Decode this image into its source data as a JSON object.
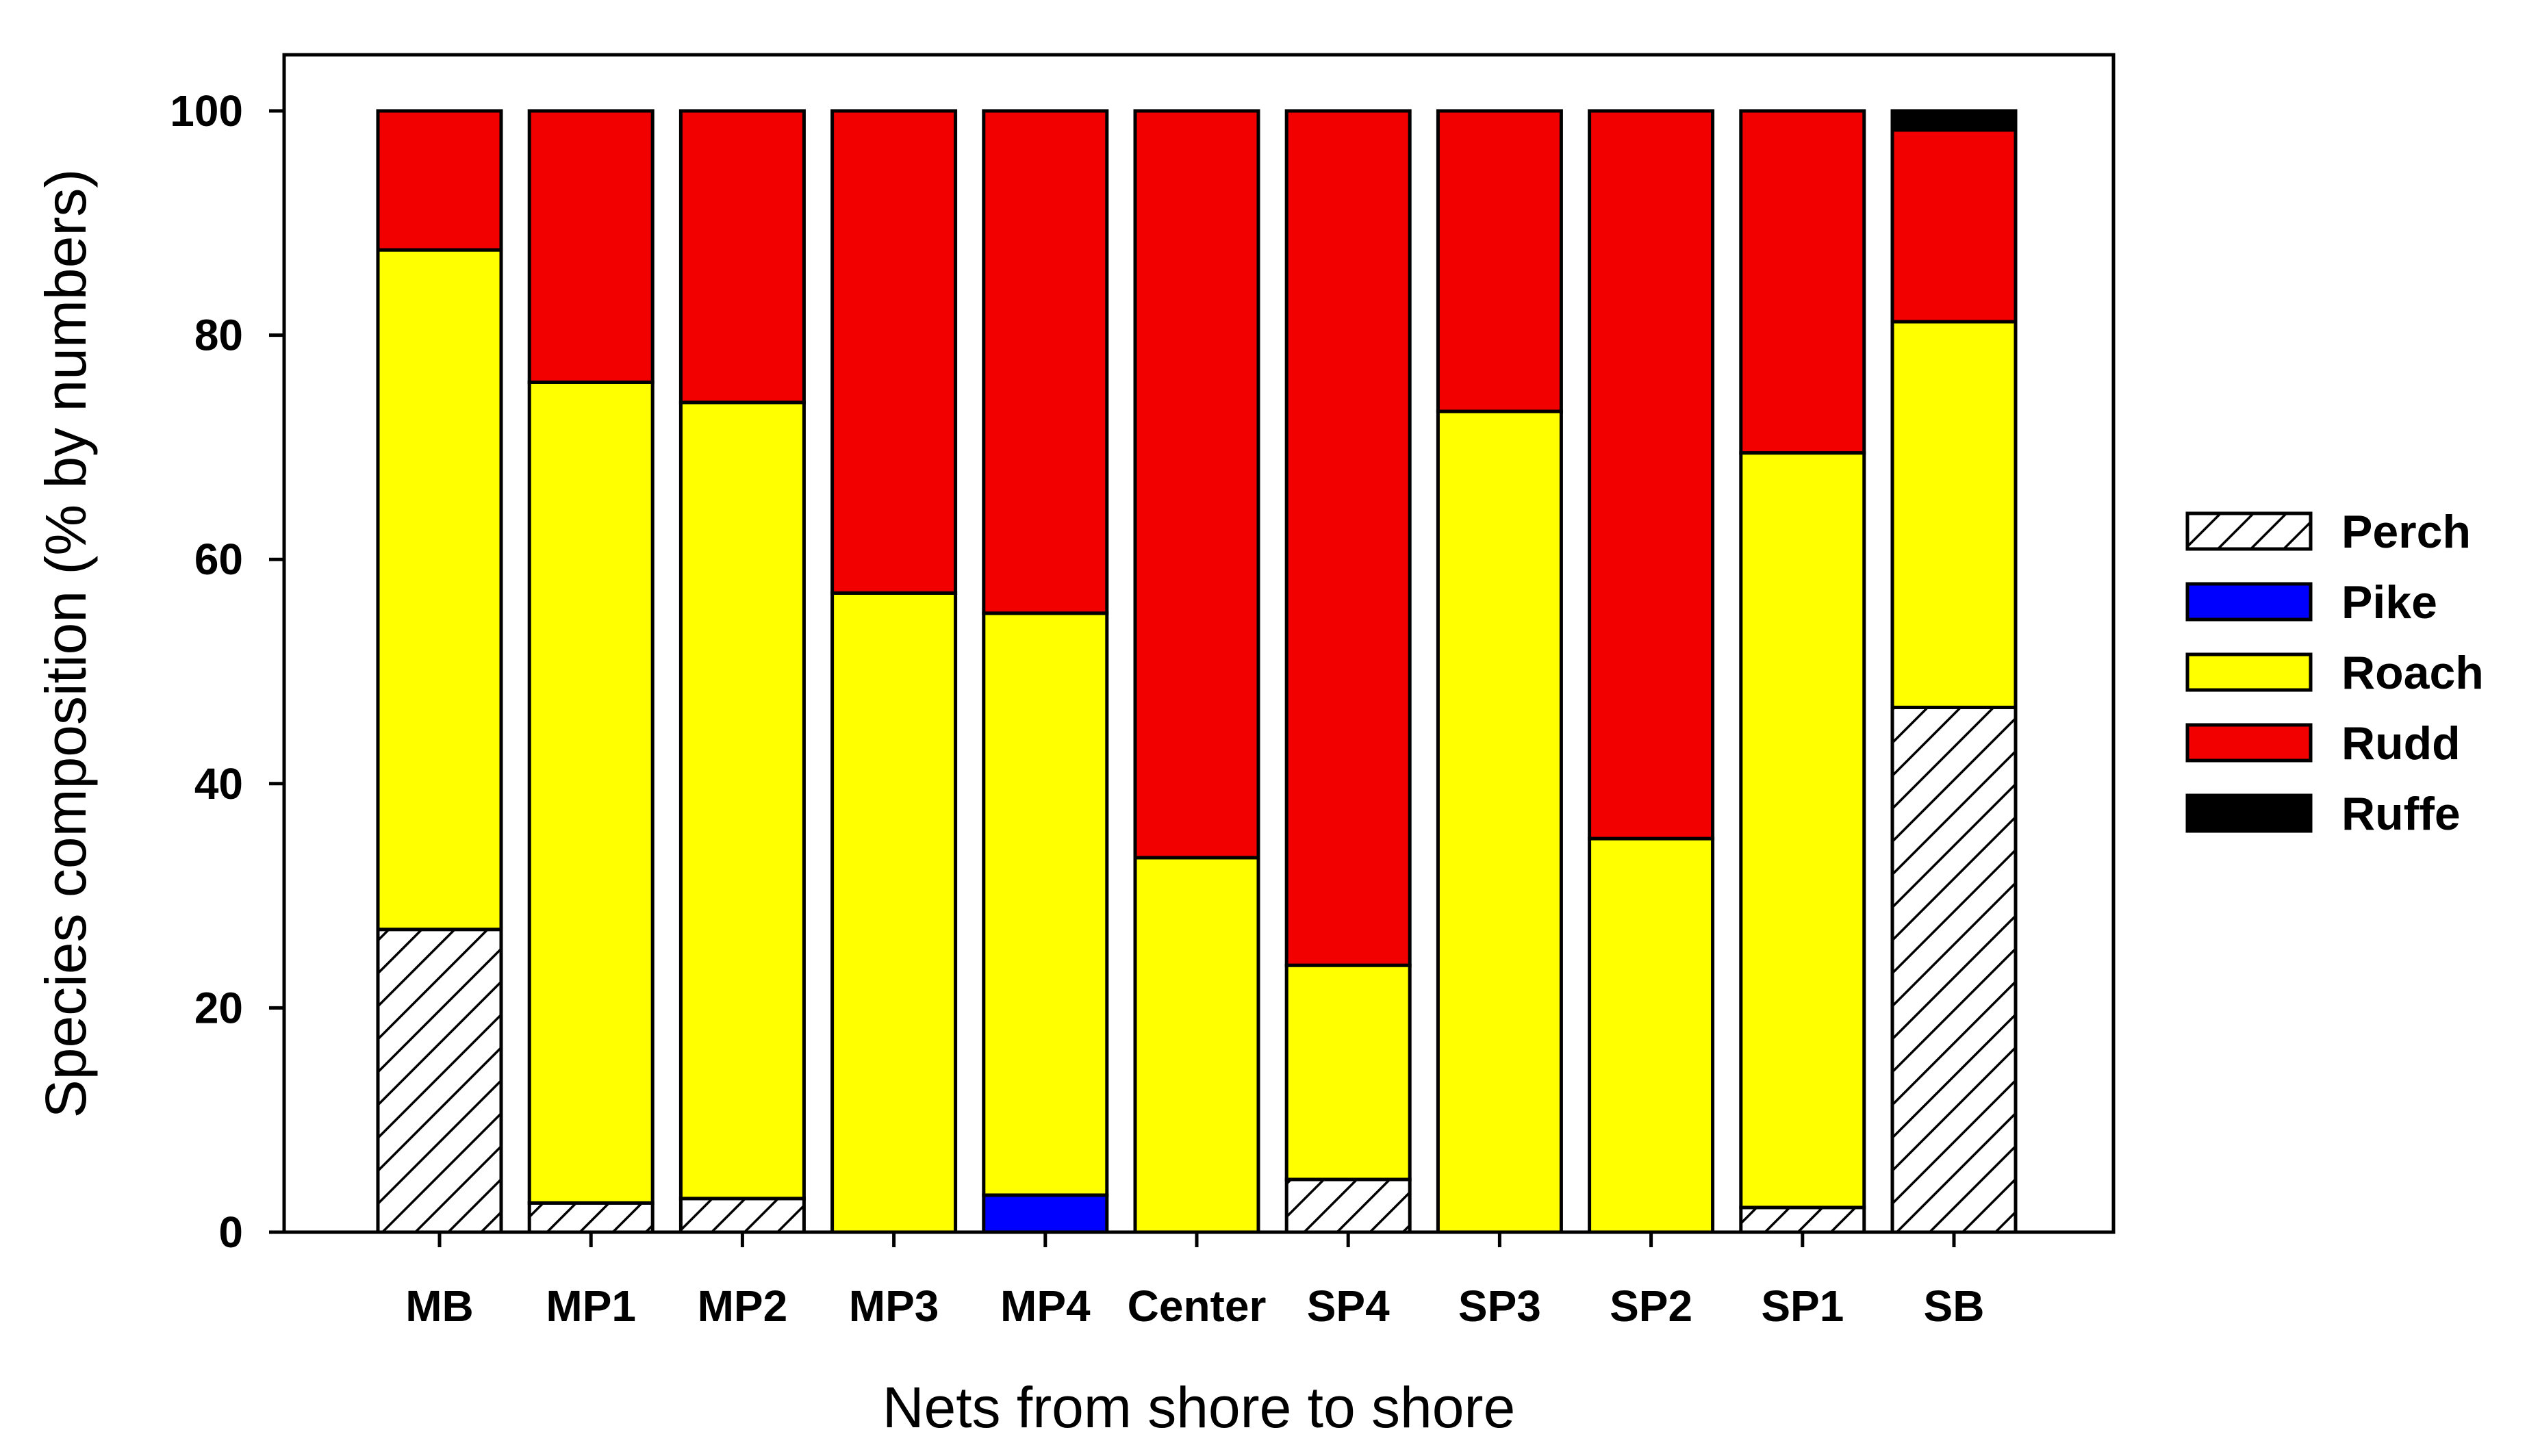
{
  "chart_data": {
    "type": "bar",
    "stacked": true,
    "title": "",
    "xlabel": "Nets from shore to shore",
    "ylabel": "Species composition (% by numbers)",
    "ylim": [
      0,
      100
    ],
    "yticks": [
      0,
      20,
      40,
      60,
      80,
      100
    ],
    "grid": false,
    "legend": {
      "position": "right"
    },
    "categories": [
      "MB",
      "MP1",
      "MP2",
      "MP3",
      "MP4",
      "Center",
      "SP4",
      "SP3",
      "SP2",
      "SP1",
      "SB"
    ],
    "series": [
      {
        "name": "Perch",
        "color": "#ffffff",
        "pattern": "hatch",
        "values": [
          27,
          2.6,
          3,
          0,
          0,
          0,
          4.7,
          0,
          0,
          2.2,
          46.8
        ]
      },
      {
        "name": "Pike",
        "color": "#0000ff",
        "values": [
          0,
          0,
          0,
          0,
          3.3,
          0,
          0,
          0,
          0,
          0,
          0
        ]
      },
      {
        "name": "Roach",
        "color": "#ffff00",
        "values": [
          60.6,
          73.2,
          71,
          57,
          51.9,
          33.4,
          19.1,
          73.2,
          35.1,
          67.3,
          34.4
        ]
      },
      {
        "name": "Rudd",
        "color": "#f20000",
        "values": [
          12.4,
          24.2,
          26,
          43,
          44.8,
          66.6,
          76.2,
          26.8,
          64.9,
          30.5,
          17.1
        ]
      },
      {
        "name": "Ruffe",
        "color": "#000000",
        "values": [
          0,
          0,
          0,
          0,
          0,
          0,
          0,
          0,
          0,
          0,
          1.7
        ]
      }
    ]
  }
}
